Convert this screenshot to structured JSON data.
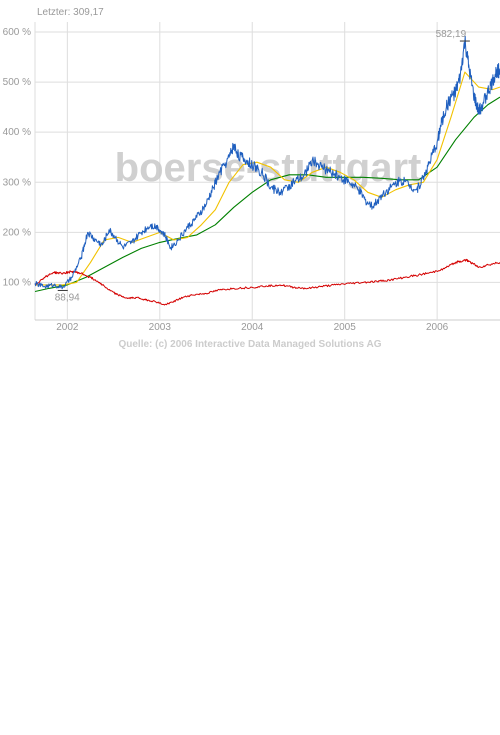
{
  "header": {
    "last_label": "Letzter: 309,17"
  },
  "watermark": "boerse-stuttgart",
  "source": "Quelle: (c) 2006 Interactive Data Managed Solutions AG",
  "annotations": {
    "max_label": "582,19",
    "min_label": "88,94"
  },
  "colors": {
    "price": "#1f5fbf",
    "ma_short": "#f2c200",
    "ma_long": "#008000",
    "benchmark": "#d40000",
    "grid": "#dedede",
    "text": "#999999",
    "watermark": "#c8c8c8",
    "watermark_accent": "#9cc3e6"
  },
  "chart_data": {
    "type": "line",
    "xlabel": "",
    "ylabel": "",
    "xlim": [
      2001.65,
      2006.68
    ],
    "ylim": [
      25,
      620
    ],
    "y_ticks": [
      100,
      200,
      300,
      400,
      500,
      600
    ],
    "y_tick_labels": [
      "100 %",
      "200 %",
      "300 %",
      "400 %",
      "500 %",
      "600 %"
    ],
    "x_ticks": [
      2002,
      2003,
      2004,
      2005,
      2006
    ],
    "x_tick_labels": [
      "2002",
      "2003",
      "2004",
      "2005",
      "2006"
    ],
    "grid": true,
    "series": [
      {
        "key": "price",
        "x": [
          2001.65,
          2001.75,
          2001.85,
          2001.95,
          2002.05,
          2002.15,
          2002.22,
          2002.3,
          2002.38,
          2002.45,
          2002.52,
          2002.6,
          2002.7,
          2002.8,
          2002.9,
          2002.98,
          2003.05,
          2003.12,
          2003.2,
          2003.3,
          2003.4,
          2003.5,
          2003.58,
          2003.65,
          2003.75,
          2003.8,
          2003.85,
          2003.92,
          2004.0,
          2004.1,
          2004.2,
          2004.3,
          2004.38,
          2004.45,
          2004.55,
          2004.65,
          2004.75,
          2004.85,
          2004.95,
          2005.05,
          2005.15,
          2005.22,
          2005.3,
          2005.4,
          2005.5,
          2005.6,
          2005.7,
          2005.78,
          2005.85,
          2005.92,
          2006.0,
          2006.05,
          2006.1,
          2006.15,
          2006.2,
          2006.25,
          2006.3,
          2006.35,
          2006.4,
          2006.45,
          2006.5,
          2006.55,
          2006.6,
          2006.65,
          2006.68
        ],
        "y": [
          98,
          92,
          95,
          90,
          110,
          150,
          200,
          185,
          175,
          205,
          190,
          170,
          180,
          200,
          215,
          210,
          195,
          170,
          185,
          210,
          230,
          255,
          290,
          320,
          350,
          375,
          355,
          345,
          335,
          320,
          290,
          280,
          290,
          300,
          310,
          345,
          330,
          320,
          310,
          300,
          285,
          265,
          250,
          275,
          290,
          305,
          295,
          285,
          310,
          340,
          380,
          420,
          450,
          470,
          480,
          510,
          582,
          520,
          470,
          440,
          460,
          480,
          500,
          525,
          520
        ]
      },
      {
        "key": "ma_short",
        "x": [
          2001.65,
          2001.8,
          2001.95,
          2002.1,
          2002.25,
          2002.4,
          2002.55,
          2002.7,
          2002.85,
          2003.0,
          2003.15,
          2003.3,
          2003.45,
          2003.6,
          2003.75,
          2003.9,
          2004.05,
          2004.2,
          2004.35,
          2004.5,
          2004.65,
          2004.8,
          2004.95,
          2005.1,
          2005.25,
          2005.4,
          2005.55,
          2005.7,
          2005.85,
          2006.0,
          2006.15,
          2006.3,
          2006.45,
          2006.6,
          2006.68
        ],
        "y": [
          95,
          95,
          95,
          100,
          140,
          185,
          190,
          180,
          190,
          200,
          185,
          190,
          215,
          245,
          300,
          335,
          340,
          330,
          305,
          300,
          320,
          330,
          320,
          305,
          280,
          270,
          285,
          295,
          300,
          345,
          430,
          520,
          490,
          485,
          490
        ]
      },
      {
        "key": "ma_long",
        "x": [
          2001.65,
          2001.8,
          2002.0,
          2002.2,
          2002.4,
          2002.6,
          2002.8,
          2003.0,
          2003.2,
          2003.4,
          2003.6,
          2003.8,
          2004.0,
          2004.2,
          2004.4,
          2004.6,
          2004.8,
          2005.0,
          2005.2,
          2005.4,
          2005.6,
          2005.8,
          2006.0,
          2006.2,
          2006.4,
          2006.55,
          2006.68
        ],
        "y": [
          82,
          88,
          95,
          110,
          130,
          150,
          168,
          180,
          188,
          195,
          215,
          250,
          280,
          305,
          315,
          315,
          310,
          310,
          310,
          308,
          305,
          305,
          330,
          385,
          430,
          455,
          470
        ]
      },
      {
        "key": "benchmark",
        "x": [
          2001.65,
          2001.75,
          2001.85,
          2001.95,
          2002.05,
          2002.15,
          2002.25,
          2002.35,
          2002.45,
          2002.55,
          2002.65,
          2002.75,
          2002.85,
          2002.95,
          2003.05,
          2003.15,
          2003.25,
          2003.35,
          2003.5,
          2003.65,
          2003.8,
          2004.0,
          2004.15,
          2004.3,
          2004.45,
          2004.6,
          2004.75,
          2004.9,
          2005.05,
          2005.2,
          2005.35,
          2005.5,
          2005.65,
          2005.8,
          2005.95,
          2006.1,
          2006.2,
          2006.3,
          2006.35,
          2006.45,
          2006.55,
          2006.68
        ],
        "y": [
          95,
          110,
          120,
          118,
          122,
          118,
          110,
          100,
          85,
          75,
          68,
          70,
          65,
          62,
          55,
          62,
          70,
          75,
          78,
          85,
          88,
          90,
          93,
          95,
          90,
          88,
          92,
          95,
          98,
          100,
          102,
          105,
          110,
          115,
          120,
          130,
          140,
          145,
          142,
          130,
          135,
          140
        ]
      }
    ]
  }
}
